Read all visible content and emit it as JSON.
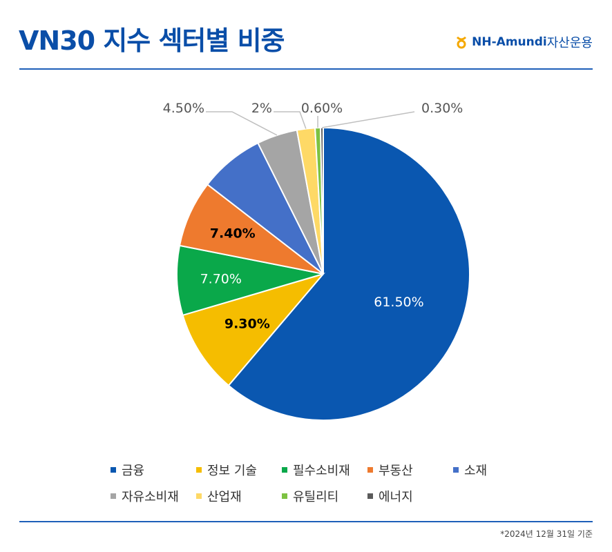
{
  "header": {
    "title": "VN30 지수 섹터별 비중",
    "brand_name": "NH-Amundi",
    "brand_suffix": "자산운용",
    "brand_color": "#0a4ea8"
  },
  "chart_data": {
    "type": "pie",
    "title": "",
    "start_angle_deg": 0,
    "direction": "clockwise",
    "legend_position": "bottom",
    "slices": [
      {
        "label": "금융",
        "value": 61.5,
        "display": "61.50%",
        "color": "#0a57b0",
        "label_placement": "inside",
        "label_color": "#ffffff",
        "label_bold": false
      },
      {
        "label": "정보 기술",
        "value": 9.3,
        "display": "9.30%",
        "color": "#f5bd00",
        "label_placement": "inside",
        "label_color": "#000000",
        "label_bold": true
      },
      {
        "label": "필수소비재",
        "value": 7.7,
        "display": "7.70%",
        "color": "#0aa84a",
        "label_placement": "inside",
        "label_color": "#ffffff",
        "label_bold": false
      },
      {
        "label": "부동산",
        "value": 7.4,
        "display": "7.40%",
        "color": "#ee7a2e",
        "label_placement": "inside",
        "label_color": "#000000",
        "label_bold": true
      },
      {
        "label": "소재",
        "value": 7.2,
        "display": "",
        "color": "#4470c8",
        "label_placement": "none",
        "label_color": "#ffffff",
        "label_bold": false
      },
      {
        "label": "자유소비재",
        "value": 4.5,
        "display": "4.50%",
        "color": "#a5a5a5",
        "label_placement": "outside",
        "label_color": "#555555",
        "label_bold": false
      },
      {
        "label": "산업재",
        "value": 2.0,
        "display": "2%",
        "color": "#fed966",
        "label_placement": "outside",
        "label_color": "#555555",
        "label_bold": false
      },
      {
        "label": "유틸리티",
        "value": 0.6,
        "display": "0.60%",
        "color": "#7dc242",
        "label_placement": "outside",
        "label_color": "#555555",
        "label_bold": false
      },
      {
        "label": "에너지",
        "value": 0.3,
        "display": "0.30%",
        "color": "#5a5a5a",
        "label_placement": "outside",
        "label_color": "#555555",
        "label_bold": false
      }
    ]
  },
  "legend": {
    "items": [
      {
        "label": "금융",
        "color": "#0a57b0"
      },
      {
        "label": "정보 기술",
        "color": "#f5bd00"
      },
      {
        "label": "필수소비재",
        "color": "#0aa84a"
      },
      {
        "label": "부동산",
        "color": "#ee7a2e"
      },
      {
        "label": "소재",
        "color": "#4470c8"
      },
      {
        "label": "자유소비재",
        "color": "#a5a5a5"
      },
      {
        "label": "산업재",
        "color": "#fed966"
      },
      {
        "label": "유틸리티",
        "color": "#7dc242"
      },
      {
        "label": "에너지",
        "color": "#5a5a5a"
      }
    ]
  },
  "footnote": "*2024년 12월 31일 기준"
}
